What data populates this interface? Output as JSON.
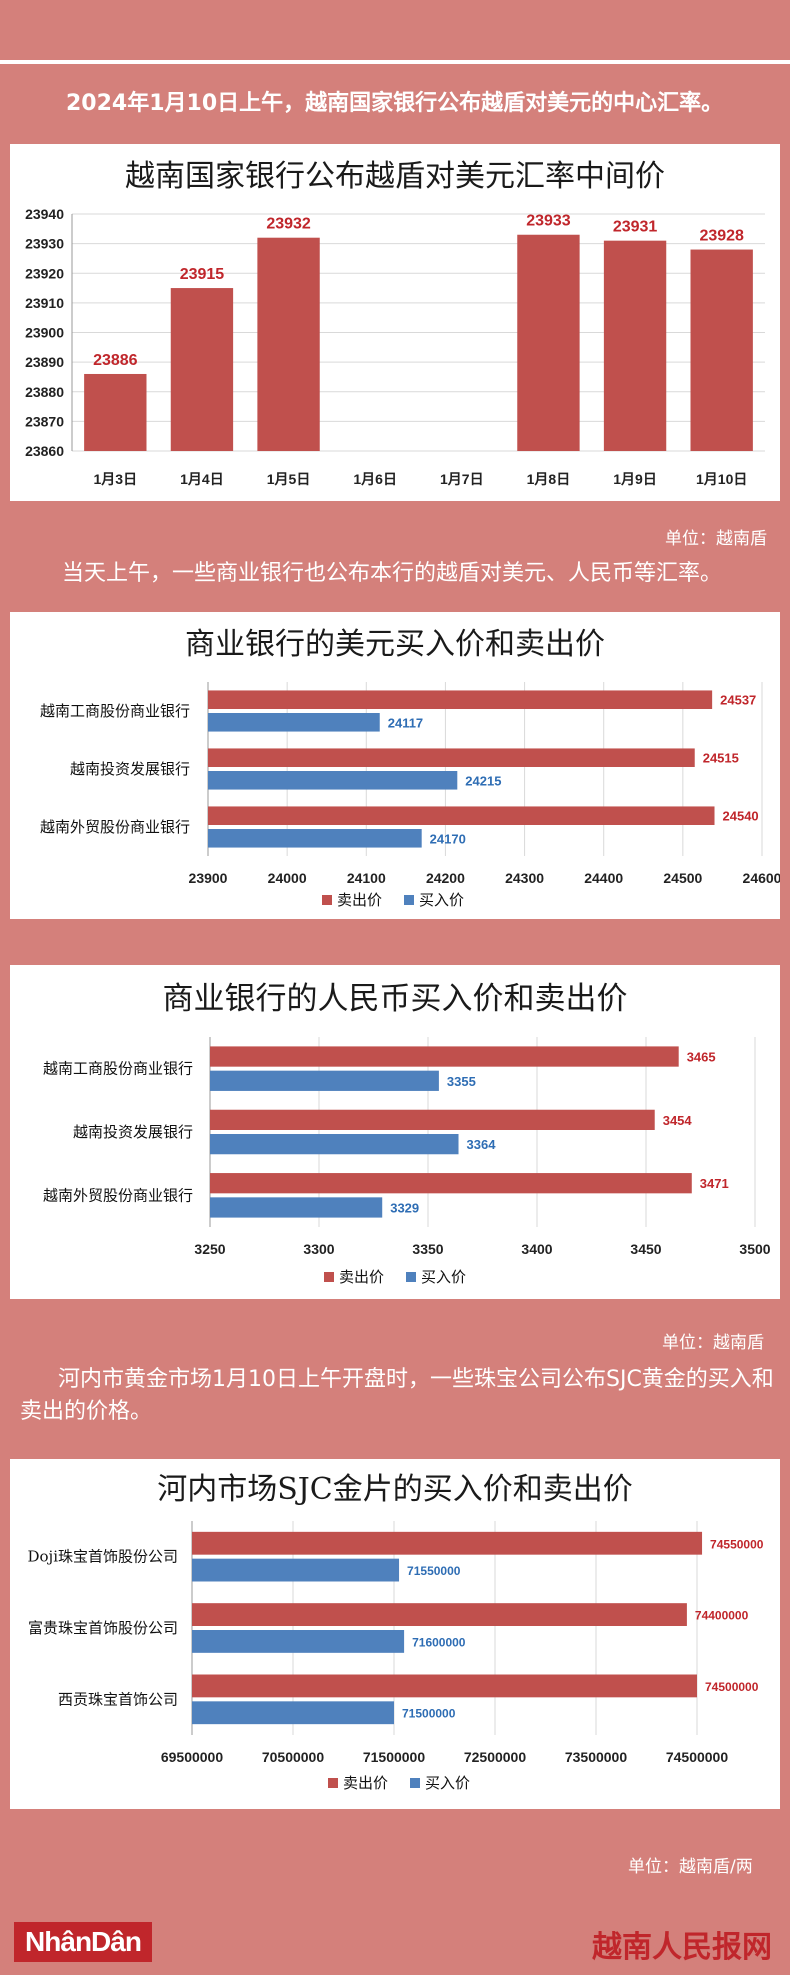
{
  "intro1": "2024年1月10日上午，越南国家银行公布越盾对美元的中心汇率。",
  "unit1": "单位：越南盾",
  "intro2": "当天上午，一些商业银行也公布本行的越盾对美元、人民币等汇率。",
  "unit2": "单位：越南盾",
  "intro3": "河内市黄金市场1月10日上午开盘时，一些珠宝公司公布SJC黄金的买入和卖出的价格。",
  "unit3": "单位：越南盾/两",
  "footer": {
    "logo": "NhânDân",
    "site": "越南人民报网"
  },
  "colors": {
    "sell": "#c0504d",
    "buy": "#4f81bd",
    "label_sell": "#c0262b",
    "label_buy": "#2e6db4"
  },
  "chart_data": [
    {
      "type": "bar",
      "title": "越南国家银行公布越盾对美元汇率中间价",
      "categories": [
        "1月3日",
        "1月4日",
        "1月5日",
        "1月6日",
        "1月7日",
        "1月8日",
        "1月9日",
        "1月10日"
      ],
      "values": [
        23886,
        23915,
        23932,
        null,
        null,
        23933,
        23931,
        23928
      ],
      "ylim": [
        23860,
        23940
      ],
      "yticks": [
        23860,
        23870,
        23880,
        23890,
        23900,
        23910,
        23920,
        23930,
        23940
      ],
      "grid": true
    },
    {
      "type": "bar",
      "orientation": "horizontal",
      "title": "商业银行的美元买入价和卖出价",
      "categories": [
        "越南工商股份商业银行",
        "越南投资发展银行",
        "越南外贸股份商业银行"
      ],
      "series": [
        {
          "name": "卖出价",
          "values": [
            24537,
            24515,
            24540
          ]
        },
        {
          "name": "买入价",
          "values": [
            24117,
            24215,
            24170
          ]
        }
      ],
      "xlim": [
        23900,
        24600
      ],
      "xticks": [
        23900,
        24000,
        24100,
        24200,
        24300,
        24400,
        24500,
        24600
      ],
      "legend": "bottom",
      "grid": true
    },
    {
      "type": "bar",
      "orientation": "horizontal",
      "title": "商业银行的人民币买入价和卖出价",
      "categories": [
        "越南工商股份商业银行",
        "越南投资发展银行",
        "越南外贸股份商业银行"
      ],
      "series": [
        {
          "name": "卖出价",
          "values": [
            3465,
            3454,
            3471
          ]
        },
        {
          "name": "买入价",
          "values": [
            3355,
            3364,
            3329
          ]
        }
      ],
      "xlim": [
        3250,
        3500
      ],
      "xticks": [
        3250,
        3300,
        3350,
        3400,
        3450,
        3500
      ],
      "legend": "bottom",
      "grid": true
    },
    {
      "type": "bar",
      "orientation": "horizontal",
      "title": "河内市场SJC金片的买入价和卖出价",
      "categories": [
        "Doji珠宝首饰股份公司",
        "富贵珠宝首饰股份公司",
        "西贡珠宝首饰公司"
      ],
      "series": [
        {
          "name": "卖出价",
          "values": [
            74550000,
            74400000,
            74500000
          ]
        },
        {
          "name": "买入价",
          "values": [
            71550000,
            71600000,
            71500000
          ]
        }
      ],
      "xlim": [
        69500000,
        74500000
      ],
      "xticks": [
        69500000,
        70500000,
        71500000,
        72500000,
        73500000,
        74500000
      ],
      "legend": "bottom",
      "grid": true
    }
  ]
}
